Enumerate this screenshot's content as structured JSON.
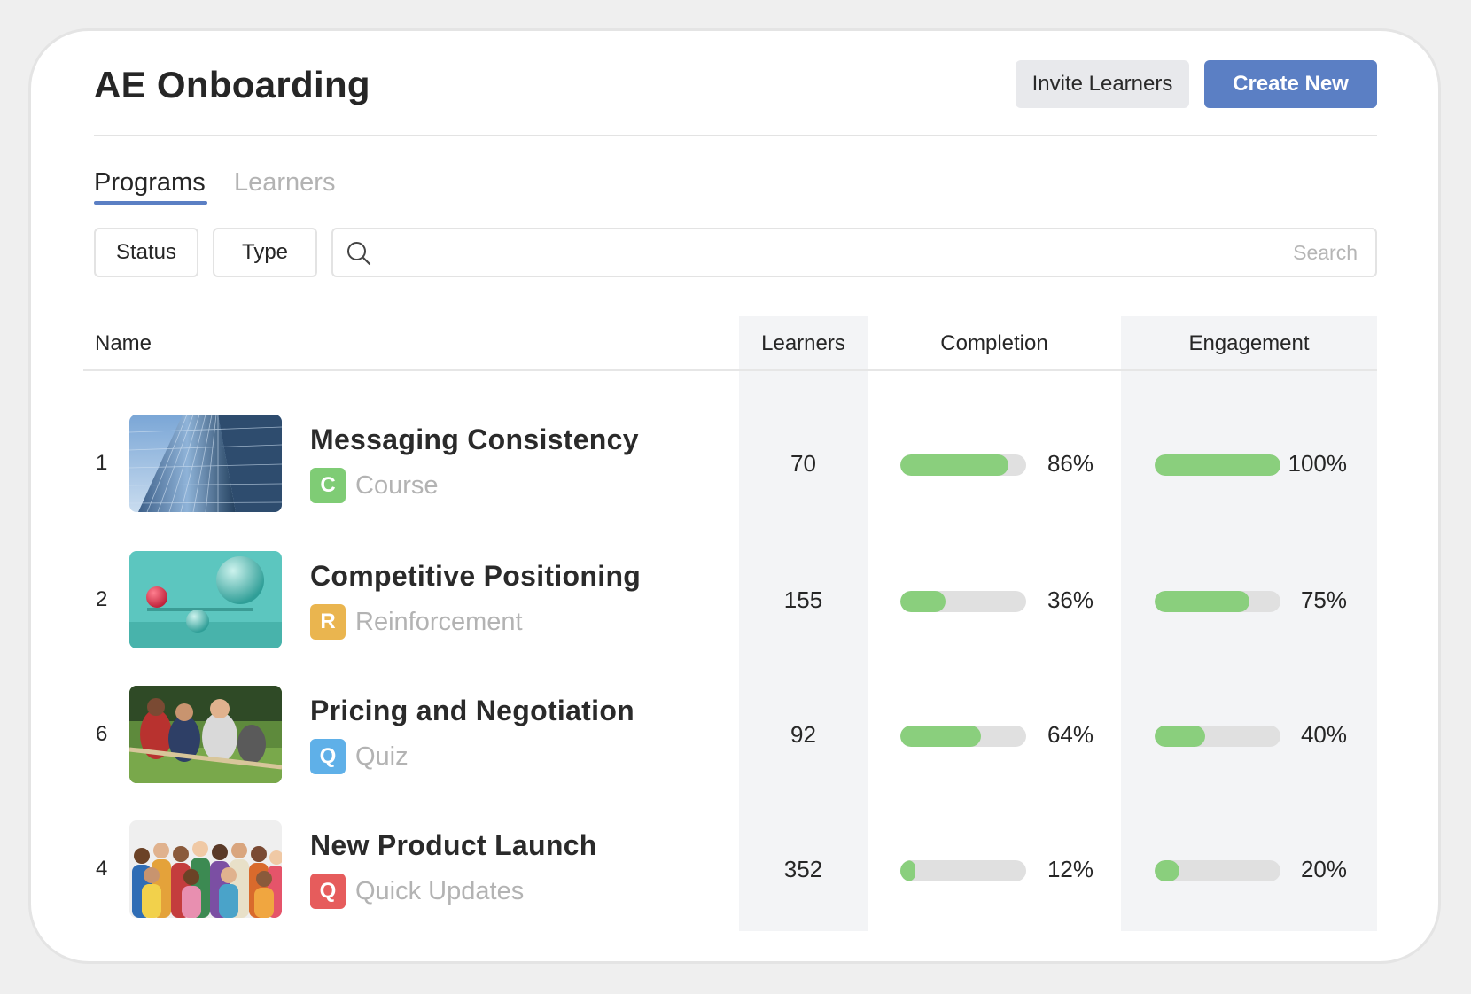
{
  "header": {
    "title": "AE Onboarding",
    "invite_label": "Invite Learners",
    "create_label": "Create New"
  },
  "tabs": [
    {
      "label": "Programs",
      "active": true
    },
    {
      "label": "Learners",
      "active": false
    }
  ],
  "filters": {
    "status_label": "Status",
    "type_label": "Type",
    "search_placeholder": "Search",
    "search_value": ""
  },
  "table": {
    "columns": {
      "name": "Name",
      "learners": "Learners",
      "completion": "Completion",
      "engagement": "Engagement"
    },
    "rows": [
      {
        "rank": "1",
        "thumbnail": "office-building-image",
        "title": "Messaging Consistency",
        "type_letter": "C",
        "type_label": "Course",
        "type_color": "#7fcc75",
        "learners": "70",
        "completion_pct": 86,
        "completion_label": "86%",
        "engagement_pct": 100,
        "engagement_label": "100%"
      },
      {
        "rank": "2",
        "thumbnail": "balance-spheres-image",
        "title": "Competitive Positioning",
        "type_letter": "R",
        "type_label": "Reinforcement",
        "type_color": "#eab54f",
        "learners": "155",
        "completion_pct": 36,
        "completion_label": "36%",
        "engagement_pct": 75,
        "engagement_label": "75%"
      },
      {
        "rank": "6",
        "thumbnail": "tug-of-war-image",
        "title": "Pricing and Negotiation",
        "type_letter": "Q",
        "type_label": "Quiz",
        "type_color": "#5fb0e8",
        "learners": "92",
        "completion_pct": 64,
        "completion_label": "64%",
        "engagement_pct": 40,
        "engagement_label": "40%"
      },
      {
        "rank": "4",
        "thumbnail": "team-group-image",
        "title": "New Product Launch",
        "type_letter": "Q",
        "type_label": "Quick Updates",
        "type_color": "#e65c5c",
        "learners": "352",
        "completion_pct": 12,
        "completion_label": "12%",
        "engagement_pct": 20,
        "engagement_label": "20%"
      }
    ]
  },
  "colors": {
    "accent": "#5b7fc4",
    "bar_fill": "#8acf7d",
    "bar_track": "#e0e0e0",
    "column_highlight": "#f3f4f6"
  }
}
